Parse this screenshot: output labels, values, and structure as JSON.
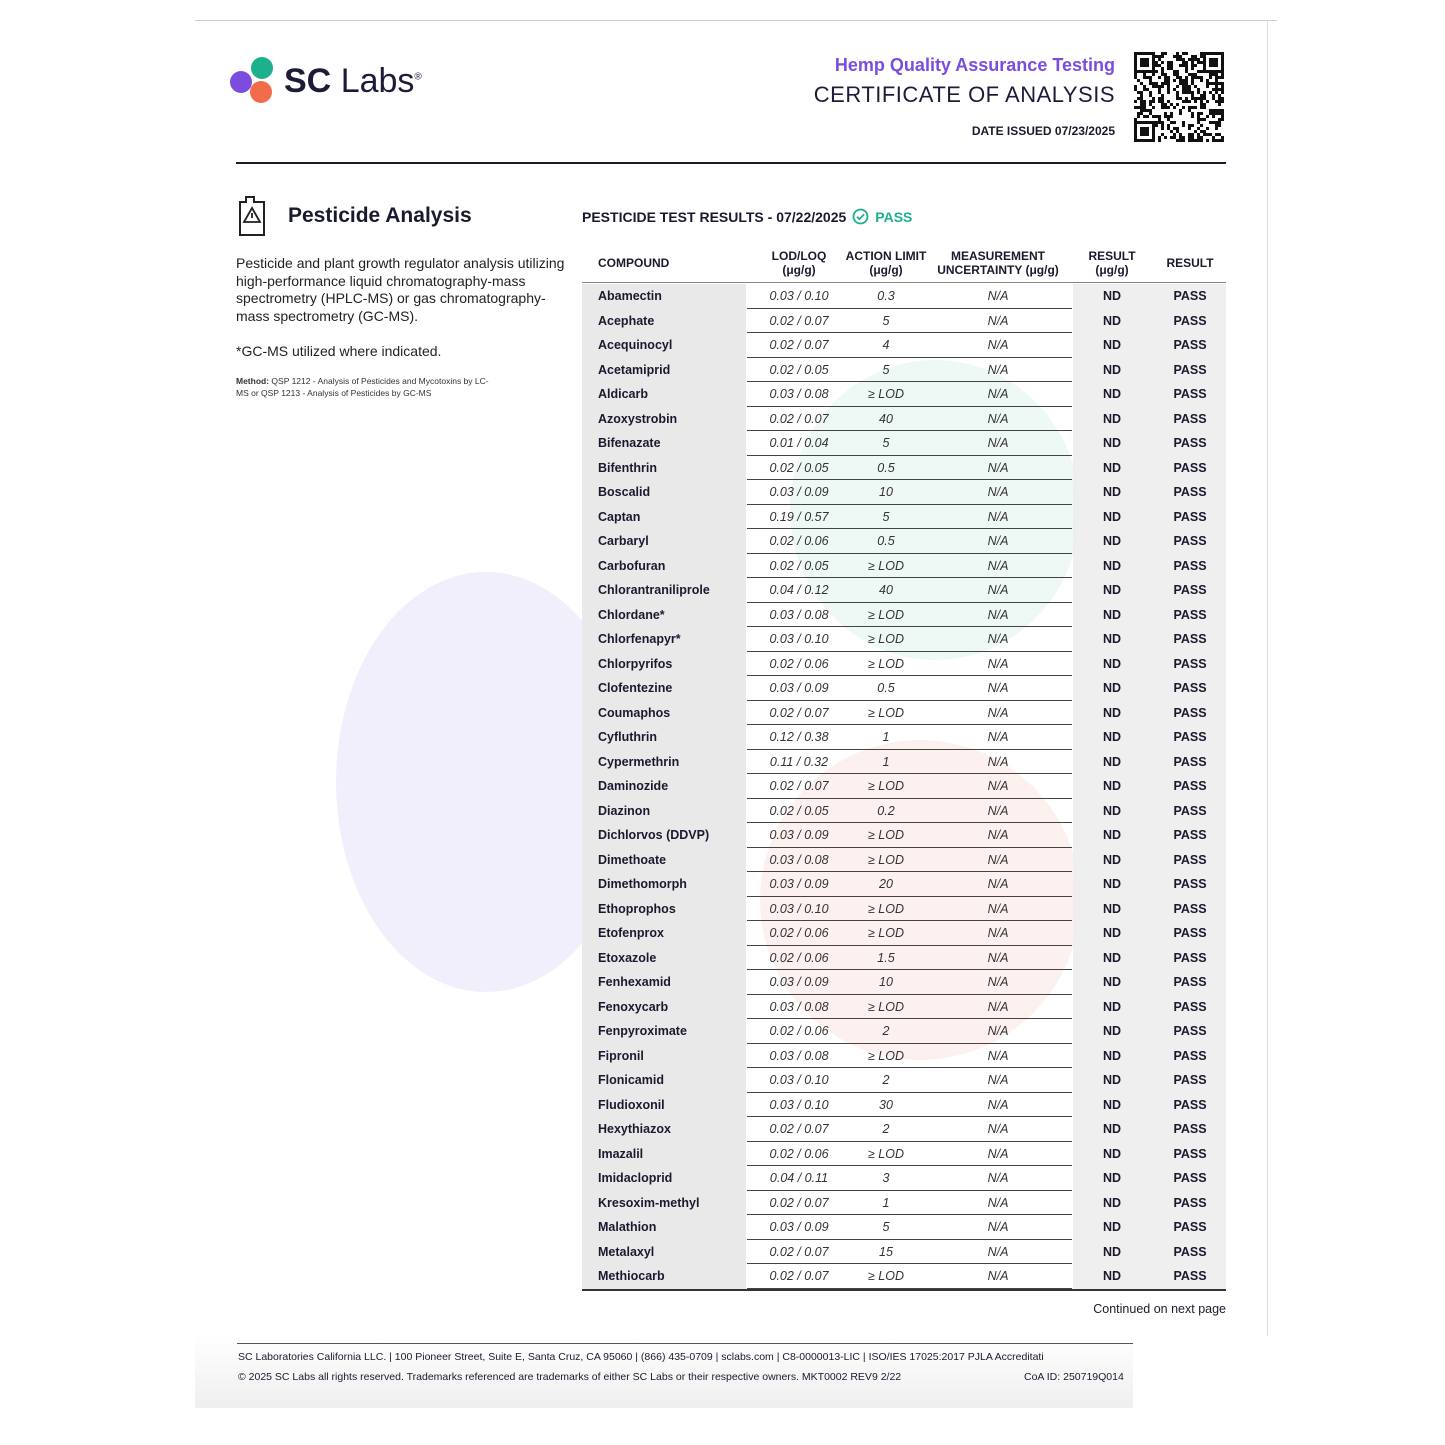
{
  "header": {
    "logo": {
      "bold": "SC",
      "light": "Labs",
      "mark": "®"
    },
    "subtitle": "Hemp Quality Assurance Testing",
    "title": "CERTIFICATE OF ANALYSIS",
    "date_issued": "DATE ISSUED 07/23/2025"
  },
  "section": {
    "title": "Pesticide Analysis",
    "description": "Pesticide and plant growth regulator analysis utilizing high-performance liquid chromatography-mass spectrometry (HPLC-MS) or gas chromatography-mass spectrometry (GC-MS).",
    "note": "*GC-MS utilized where indicated.",
    "method_label": "Method:",
    "method_text": "QSP 1212 - Analysis of Pesticides and Mycotoxins by LC-MS or QSP 1213 - Analysis of Pesticides by GC-MS"
  },
  "results": {
    "heading": "PESTICIDE TEST RESULTS - 07/22/2025",
    "status": "PASS"
  },
  "table": {
    "columns": [
      [
        "COMPOUND"
      ],
      [
        "LOD/LOQ",
        "(μg/g)"
      ],
      [
        "ACTION LIMIT",
        "(μg/g)"
      ],
      [
        "MEASUREMENT",
        "UNCERTAINTY (μg/g)"
      ],
      [
        "RESULT",
        "(μg/g)"
      ],
      [
        "RESULT"
      ]
    ],
    "rows": [
      [
        "Abamectin",
        "0.03 / 0.10",
        "0.3",
        "N/A",
        "ND",
        "PASS"
      ],
      [
        "Acephate",
        "0.02 / 0.07",
        "5",
        "N/A",
        "ND",
        "PASS"
      ],
      [
        "Acequinocyl",
        "0.02 / 0.07",
        "4",
        "N/A",
        "ND",
        "PASS"
      ],
      [
        "Acetamiprid",
        "0.02 / 0.05",
        "5",
        "N/A",
        "ND",
        "PASS"
      ],
      [
        "Aldicarb",
        "0.03 / 0.08",
        "≥ LOD",
        "N/A",
        "ND",
        "PASS"
      ],
      [
        "Azoxystrobin",
        "0.02 / 0.07",
        "40",
        "N/A",
        "ND",
        "PASS"
      ],
      [
        "Bifenazate",
        "0.01 / 0.04",
        "5",
        "N/A",
        "ND",
        "PASS"
      ],
      [
        "Bifenthrin",
        "0.02 / 0.05",
        "0.5",
        "N/A",
        "ND",
        "PASS"
      ],
      [
        "Boscalid",
        "0.03 / 0.09",
        "10",
        "N/A",
        "ND",
        "PASS"
      ],
      [
        "Captan",
        "0.19 / 0.57",
        "5",
        "N/A",
        "ND",
        "PASS"
      ],
      [
        "Carbaryl",
        "0.02 / 0.06",
        "0.5",
        "N/A",
        "ND",
        "PASS"
      ],
      [
        "Carbofuran",
        "0.02 / 0.05",
        "≥ LOD",
        "N/A",
        "ND",
        "PASS"
      ],
      [
        "Chlorantraniliprole",
        "0.04 / 0.12",
        "40",
        "N/A",
        "ND",
        "PASS"
      ],
      [
        "Chlordane*",
        "0.03 / 0.08",
        "≥ LOD",
        "N/A",
        "ND",
        "PASS"
      ],
      [
        "Chlorfenapyr*",
        "0.03 / 0.10",
        "≥ LOD",
        "N/A",
        "ND",
        "PASS"
      ],
      [
        "Chlorpyrifos",
        "0.02 / 0.06",
        "≥ LOD",
        "N/A",
        "ND",
        "PASS"
      ],
      [
        "Clofentezine",
        "0.03 / 0.09",
        "0.5",
        "N/A",
        "ND",
        "PASS"
      ],
      [
        "Coumaphos",
        "0.02 / 0.07",
        "≥ LOD",
        "N/A",
        "ND",
        "PASS"
      ],
      [
        "Cyfluthrin",
        "0.12 / 0.38",
        "1",
        "N/A",
        "ND",
        "PASS"
      ],
      [
        "Cypermethrin",
        "0.11 / 0.32",
        "1",
        "N/A",
        "ND",
        "PASS"
      ],
      [
        "Daminozide",
        "0.02 / 0.07",
        "≥ LOD",
        "N/A",
        "ND",
        "PASS"
      ],
      [
        "Diazinon",
        "0.02 / 0.05",
        "0.2",
        "N/A",
        "ND",
        "PASS"
      ],
      [
        "Dichlorvos (DDVP)",
        "0.03 / 0.09",
        "≥ LOD",
        "N/A",
        "ND",
        "PASS"
      ],
      [
        "Dimethoate",
        "0.03 / 0.08",
        "≥ LOD",
        "N/A",
        "ND",
        "PASS"
      ],
      [
        "Dimethomorph",
        "0.03 / 0.09",
        "20",
        "N/A",
        "ND",
        "PASS"
      ],
      [
        "Ethoprophos",
        "0.03 / 0.10",
        "≥ LOD",
        "N/A",
        "ND",
        "PASS"
      ],
      [
        "Etofenprox",
        "0.02 / 0.06",
        "≥ LOD",
        "N/A",
        "ND",
        "PASS"
      ],
      [
        "Etoxazole",
        "0.02 / 0.06",
        "1.5",
        "N/A",
        "ND",
        "PASS"
      ],
      [
        "Fenhexamid",
        "0.03 / 0.09",
        "10",
        "N/A",
        "ND",
        "PASS"
      ],
      [
        "Fenoxycarb",
        "0.03 / 0.08",
        "≥ LOD",
        "N/A",
        "ND",
        "PASS"
      ],
      [
        "Fenpyroximate",
        "0.02 / 0.06",
        "2",
        "N/A",
        "ND",
        "PASS"
      ],
      [
        "Fipronil",
        "0.03 / 0.08",
        "≥ LOD",
        "N/A",
        "ND",
        "PASS"
      ],
      [
        "Flonicamid",
        "0.03 / 0.10",
        "2",
        "N/A",
        "ND",
        "PASS"
      ],
      [
        "Fludioxonil",
        "0.03 / 0.10",
        "30",
        "N/A",
        "ND",
        "PASS"
      ],
      [
        "Hexythiazox",
        "0.02 / 0.07",
        "2",
        "N/A",
        "ND",
        "PASS"
      ],
      [
        "Imazalil",
        "0.02 / 0.06",
        "≥ LOD",
        "N/A",
        "ND",
        "PASS"
      ],
      [
        "Imidacloprid",
        "0.04 / 0.11",
        "3",
        "N/A",
        "ND",
        "PASS"
      ],
      [
        "Kresoxim-methyl",
        "0.02 / 0.07",
        "1",
        "N/A",
        "ND",
        "PASS"
      ],
      [
        "Malathion",
        "0.03 / 0.09",
        "5",
        "N/A",
        "ND",
        "PASS"
      ],
      [
        "Metalaxyl",
        "0.02 / 0.07",
        "15",
        "N/A",
        "ND",
        "PASS"
      ],
      [
        "Methiocarb",
        "0.02 / 0.07",
        "≥ LOD",
        "N/A",
        "ND",
        "PASS"
      ]
    ]
  },
  "footer": {
    "continued": "Continued on next page",
    "line1": "SC Laboratories California LLC. | 100 Pioneer Street, Suite E, Santa Cruz, CA 95060 | (866) 435-0709 | sclabs.com | C8-0000013-LIC | ISO/IES 17025:2017 PJLA Accreditati",
    "line2": "© 2025 SC Labs all rights reserved. Trademarks referenced are trademarks of either SC Labs or their respective owners. MKT0002 REV9 2/22",
    "coa_id": "CoA ID: 250719Q014"
  }
}
